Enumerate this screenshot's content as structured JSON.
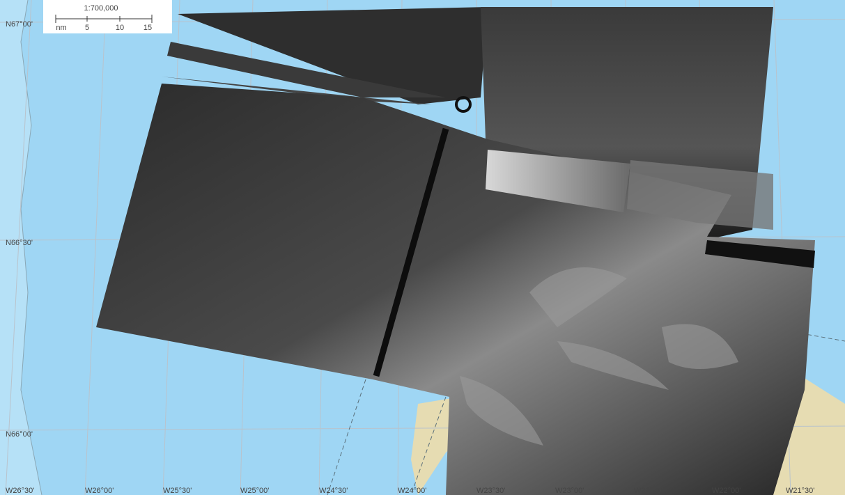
{
  "scale_bar": {
    "ratio": "1:700,000",
    "unit": "nm",
    "ticks": [
      "5",
      "10",
      "15"
    ]
  },
  "latitude_labels": [
    "N67°00'",
    "N66°30'",
    "N66°00'"
  ],
  "longitude_labels": [
    "W26°30'",
    "W26°00'",
    "W25°30'",
    "W25°00'",
    "W24°30'",
    "W24°00'",
    "W23°30'",
    "W23°00'",
    "W22°30'",
    "W22°00'",
    "W21°30'"
  ]
}
